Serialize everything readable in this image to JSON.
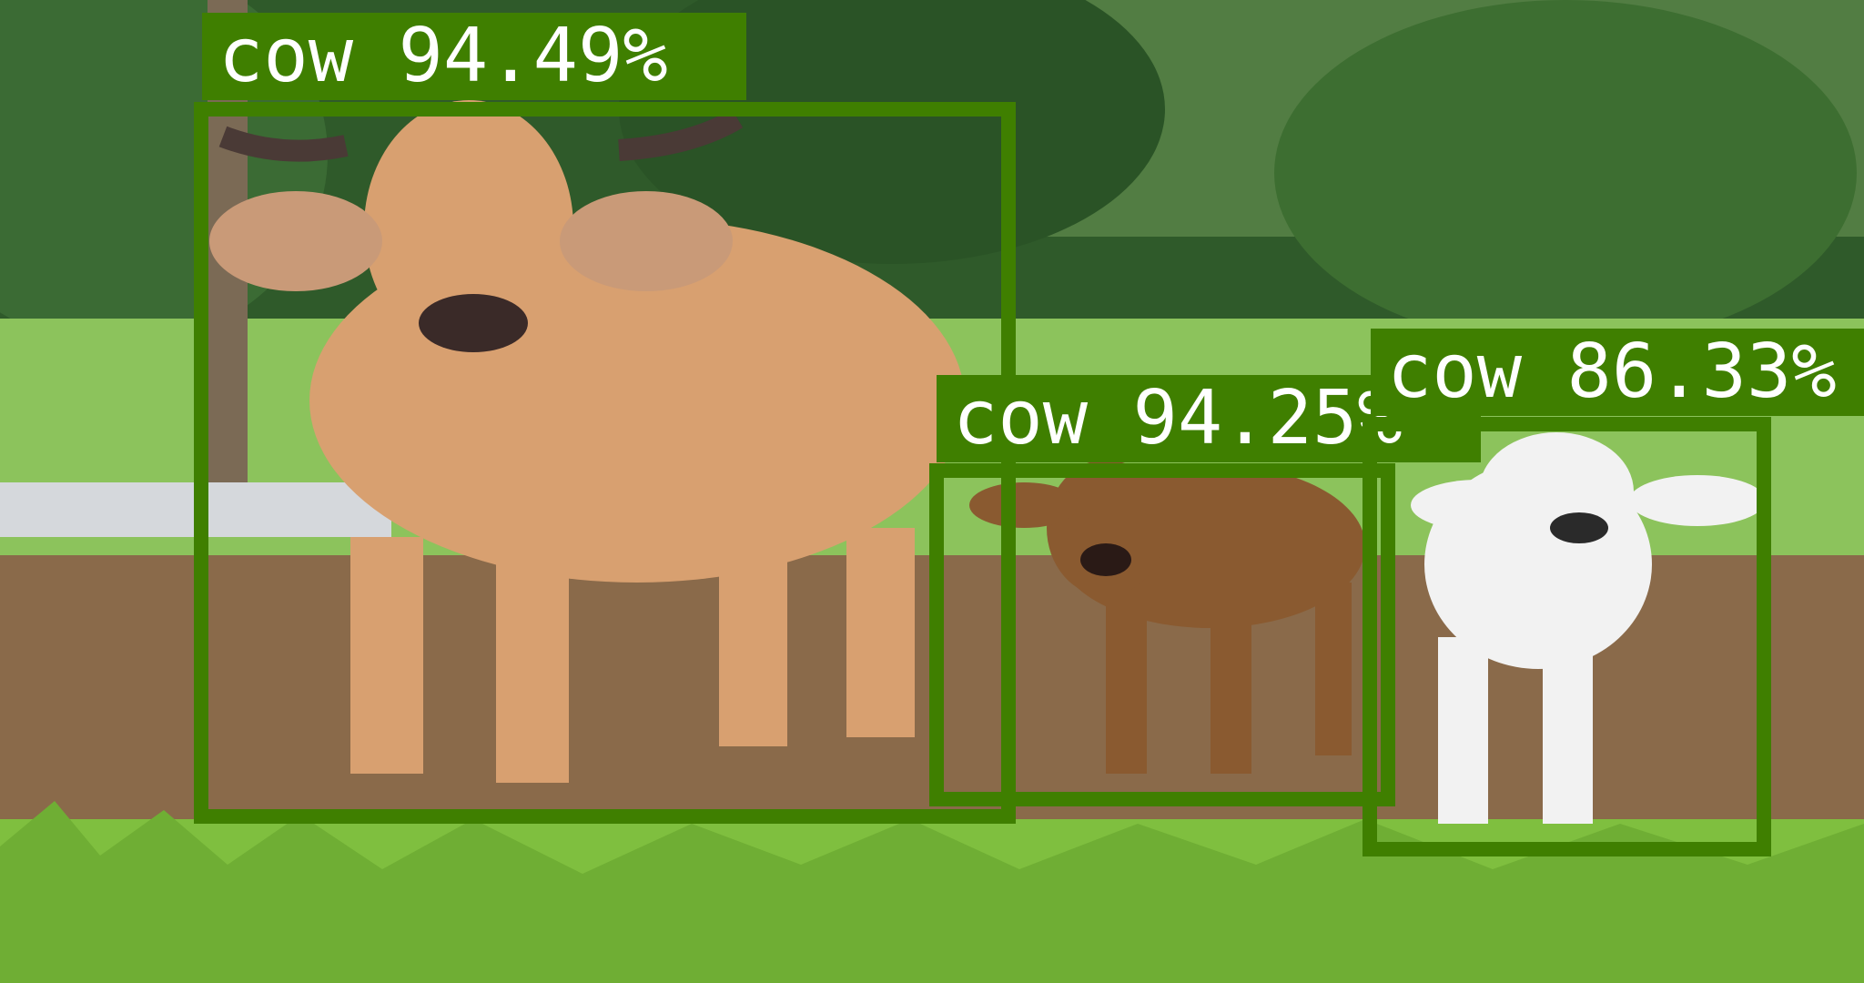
{
  "image": {
    "subject": "three cattle in a farmyard with grass and trees",
    "colors": {
      "box": "#3f7f00",
      "label_text": "#ffffff",
      "trees": "#2f5a2a",
      "grass": "#7fbf3f",
      "dirt": "#8a6a4a",
      "adult_cow": "#d8a070",
      "brown_calf": "#8a5a30",
      "white_calf": "#f2f2f2"
    }
  },
  "detections": [
    {
      "class": "cow",
      "confidence": "94.49%",
      "label": "cow 94.49%"
    },
    {
      "class": "cow",
      "confidence": "94.25%",
      "label": "cow 94.25%"
    },
    {
      "class": "cow",
      "confidence": "86.33%",
      "label": "cow 86.33%"
    }
  ]
}
